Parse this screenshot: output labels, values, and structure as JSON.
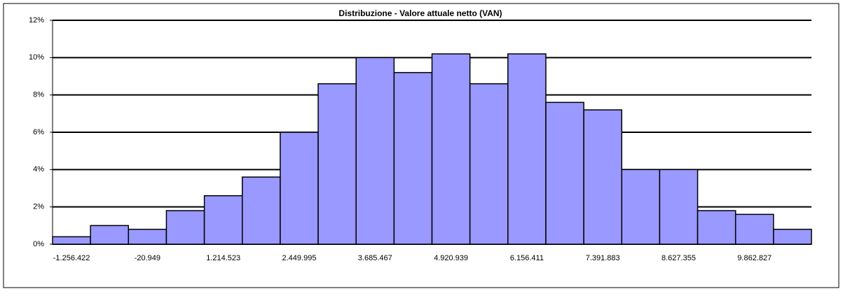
{
  "chart_data": {
    "type": "bar",
    "title": "Distribuzione - Valore attuale netto (VAN)",
    "categories": [
      "-1.256.422",
      null,
      "-20.949",
      null,
      "1.214.523",
      null,
      "2.449.995",
      null,
      "3.685.467",
      null,
      "4.920.939",
      null,
      "6.156.411",
      null,
      "7.391.883",
      null,
      "8.627.355",
      null,
      "9.862.827",
      null
    ],
    "values": [
      0.4,
      1.0,
      0.8,
      1.8,
      2.6,
      3.6,
      6.0,
      8.6,
      10.0,
      9.2,
      10.2,
      8.6,
      10.2,
      7.6,
      7.2,
      4.0,
      4.0,
      1.8,
      1.6,
      0.8
    ],
    "color": "#9999ff",
    "ylim": [
      0,
      12
    ],
    "yticks": [
      {
        "value": 0,
        "label": "0%"
      },
      {
        "value": 2,
        "label": "2%"
      },
      {
        "value": 4,
        "label": "4%"
      },
      {
        "value": 6,
        "label": "6%"
      },
      {
        "value": 8,
        "label": "8%"
      },
      {
        "value": 10,
        "label": "10%"
      },
      {
        "value": 12,
        "label": "12%"
      }
    ],
    "grid": true
  }
}
